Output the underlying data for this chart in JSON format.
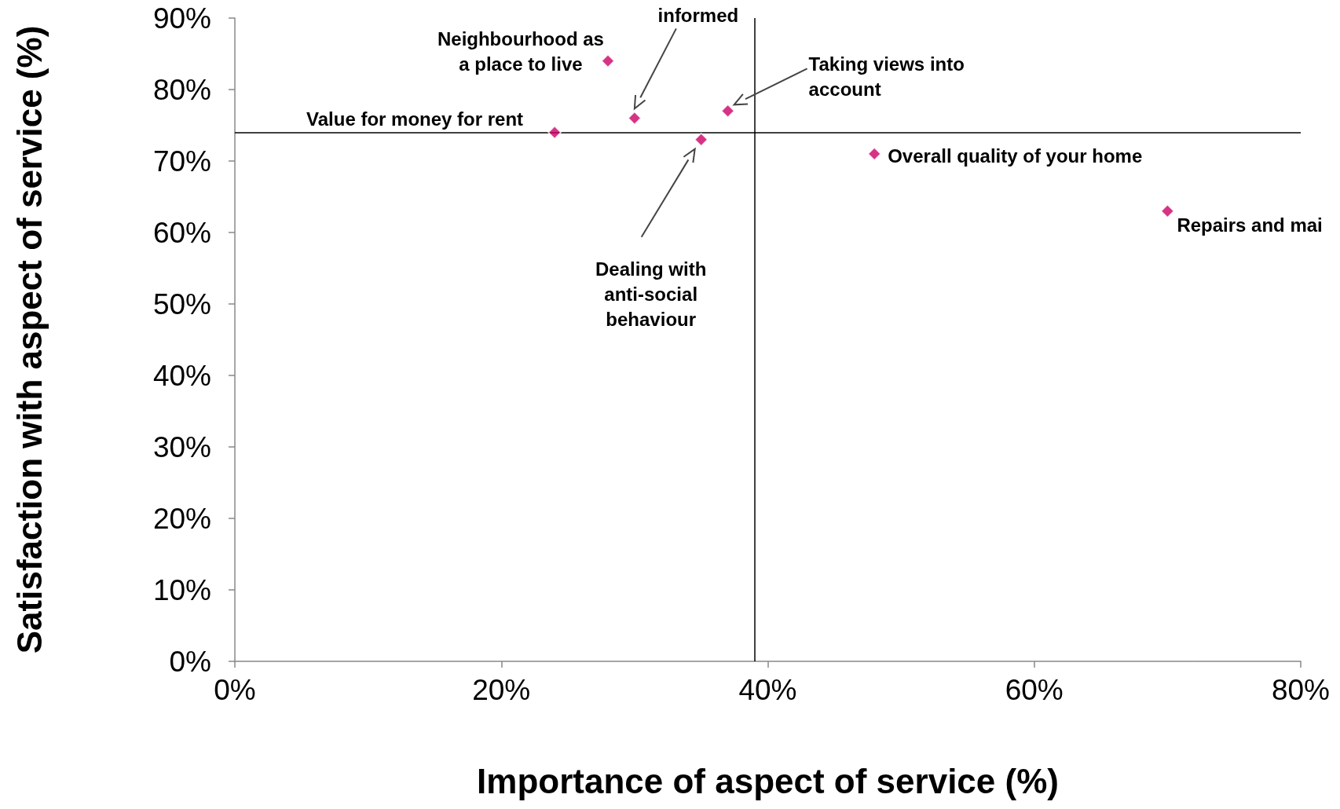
{
  "chart_data": {
    "type": "scatter",
    "xlabel": "Importance of aspect of service (%)",
    "ylabel": "Satisfaction with aspect of service (%)",
    "x": [
      24,
      28,
      30,
      35,
      37,
      48,
      70
    ],
    "series": [
      {
        "color": "#cc0066",
        "values": [
          74,
          84,
          76,
          73,
          77,
          71,
          63
        ]
      }
    ],
    "marker": "diamond",
    "grid": false,
    "xlim": [
      0,
      80
    ],
    "xticks": [
      {
        "value": 0,
        "label": "0%"
      },
      {
        "value": 20,
        "label": "20%"
      },
      {
        "value": 40,
        "label": "40%"
      },
      {
        "value": 60,
        "label": "60%"
      },
      {
        "value": 80,
        "label": "80%"
      }
    ],
    "ylim": [
      0,
      90
    ],
    "yticks": [
      {
        "value": 0,
        "label": "0%"
      },
      {
        "value": 10,
        "label": "10%"
      },
      {
        "value": 20,
        "label": "20%"
      },
      {
        "value": 30,
        "label": "30%"
      },
      {
        "value": 40,
        "label": "40%"
      },
      {
        "value": 50,
        "label": "50%"
      },
      {
        "value": 60,
        "label": "60%"
      },
      {
        "value": 70,
        "label": "70%"
      },
      {
        "value": 80,
        "label": "80%"
      },
      {
        "value": 90,
        "label": "90%"
      }
    ],
    "ref_lines": [
      {
        "axis": "x",
        "value": 39,
        "color": "#000000"
      },
      {
        "axis": "y",
        "value": 74,
        "color": "#000000"
      }
    ],
    "annotations": [
      {
        "text": "Value for money for rent",
        "x": 24,
        "y": 74
      },
      {
        "text": "Neighbourhood as\na place to live",
        "x": 28,
        "y": 84
      },
      "informed",
      "Dealing with\nanti-social\nbehaviour",
      "Taking views into\naccount",
      {
        "text": "Overall quality of your home",
        "x": 48,
        "y": 71
      },
      {
        "text": "Repairs and mai",
        "x": 70,
        "y": 63
      }
    ]
  }
}
